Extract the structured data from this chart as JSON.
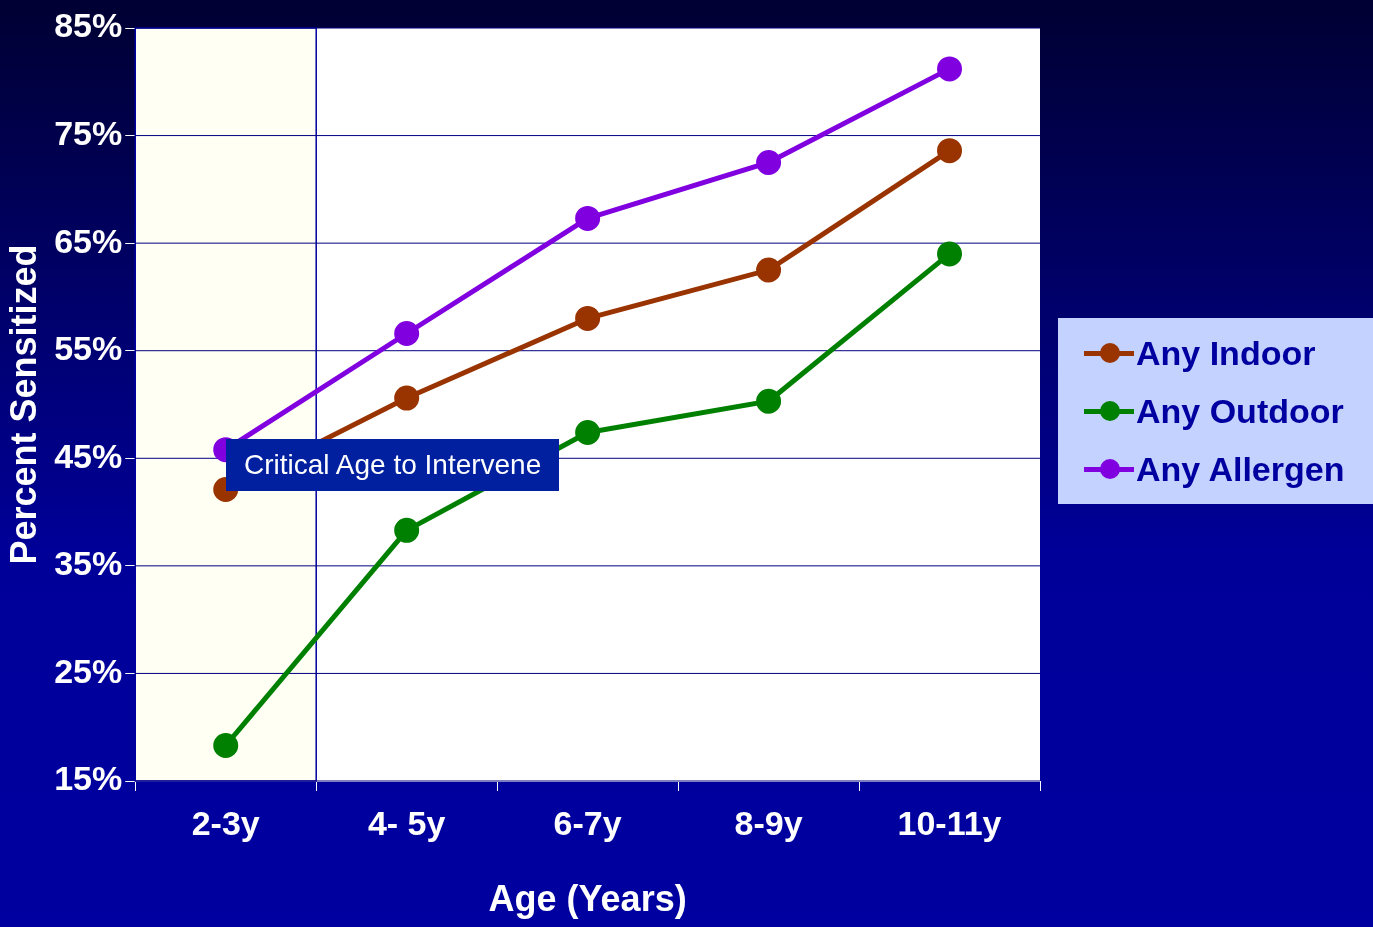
{
  "chart_data": {
    "type": "line",
    "xlabel": "Age (Years)",
    "ylabel": "Percent Sensitized",
    "categories": [
      "2-3y",
      "4- 5y",
      "6-7y",
      "8-9y",
      "10-11y"
    ],
    "series": [
      {
        "name": "Any Indoor",
        "color": "#993300",
        "values": [
          42.1,
          50.6,
          58.0,
          62.5,
          73.6
        ]
      },
      {
        "name": "Any Outdoor",
        "color": "#008000",
        "values": [
          18.3,
          38.3,
          47.4,
          50.3,
          64.0
        ]
      },
      {
        "name": "Any Allergen",
        "color": "#8000e0",
        "values": [
          45.8,
          56.6,
          67.3,
          72.5,
          81.2
        ]
      }
    ],
    "ylim": [
      15,
      85
    ],
    "yticks": [
      {
        "value": 15,
        "label": "15%"
      },
      {
        "value": 25,
        "label": "25%"
      },
      {
        "value": 35,
        "label": "35%"
      },
      {
        "value": 45,
        "label": "45%"
      },
      {
        "value": 55,
        "label": "55%"
      },
      {
        "value": 65,
        "label": "65%"
      },
      {
        "value": 75,
        "label": "75%"
      },
      {
        "value": 85,
        "label": "85%"
      }
    ],
    "grid": "y",
    "legend": "right",
    "marker": "circle",
    "line_style": "solid",
    "bands": [
      {
        "axis": "x",
        "from": "2-3y",
        "to": "2-3y",
        "color": "#fffff4"
      }
    ],
    "annotations": [
      "Critical Age to Intervene"
    ]
  }
}
